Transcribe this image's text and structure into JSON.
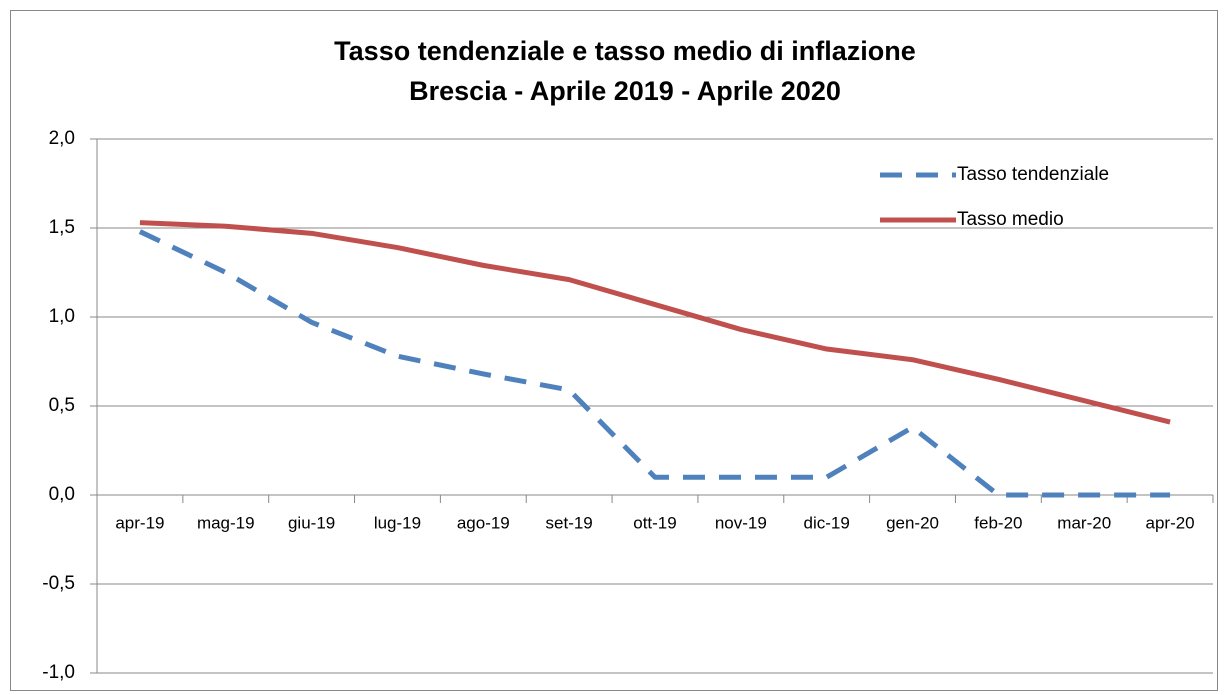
{
  "chart_data": {
    "type": "line",
    "title": "Tasso tendenziale e tasso medio di inflazione",
    "subtitle": "Brescia - Aprile 2019 - Aprile 2020",
    "categories": [
      "apr-19",
      "mag-19",
      "giu-19",
      "lug-19",
      "ago-19",
      "set-19",
      "ott-19",
      "nov-19",
      "dic-19",
      "gen-20",
      "feb-20",
      "mar-20",
      "apr-20"
    ],
    "series": [
      {
        "name": "Tasso tendenziale",
        "color": "#4f81bd",
        "line_style": "dashed",
        "values": [
          1.48,
          1.25,
          0.97,
          0.78,
          0.68,
          0.59,
          0.1,
          0.1,
          0.1,
          0.38,
          0.0,
          0.0,
          0.0
        ]
      },
      {
        "name": "Tasso medio",
        "color": "#c0504d",
        "line_style": "solid",
        "values": [
          1.53,
          1.51,
          1.47,
          1.39,
          1.29,
          1.21,
          1.07,
          0.93,
          0.82,
          0.76,
          0.65,
          0.53,
          0.41
        ]
      }
    ],
    "ylim": [
      -1,
      2
    ],
    "yticks": [
      {
        "value": -1,
        "label": "-1,0"
      },
      {
        "value": -0.5,
        "label": "-0,5"
      },
      {
        "value": 0,
        "label": "0,0"
      },
      {
        "value": 0.5,
        "label": "0,5"
      },
      {
        "value": 1,
        "label": "1,0"
      },
      {
        "value": 1.5,
        "label": "1,5"
      },
      {
        "value": 2,
        "label": "2,0"
      }
    ],
    "grid": true,
    "legend": "top-right"
  }
}
